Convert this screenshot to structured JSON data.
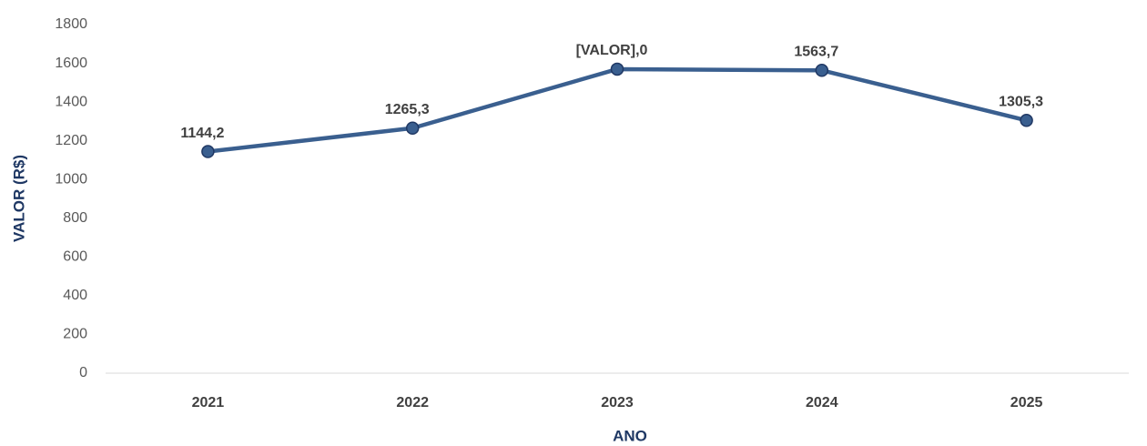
{
  "chart_data": {
    "type": "line",
    "x_label": "ANO",
    "y_label": "VALOR (R$)",
    "categories": [
      "2021",
      "2022",
      "2023",
      "2024",
      "2025"
    ],
    "series": [
      {
        "name": "VALOR (R$)",
        "color": "#3a5f8f",
        "values": [
          1144.2,
          1265.3,
          1570.0,
          1563.7,
          1305.3
        ],
        "value_labels": [
          "1144,2",
          "1265,3",
          "[VALOR],0",
          "1563,7",
          "1305,3"
        ]
      }
    ],
    "ylim": [
      0,
      1800
    ],
    "yticks": [
      0,
      200,
      400,
      600,
      800,
      1000,
      1200,
      1400,
      1600,
      1800
    ],
    "grid": false
  }
}
